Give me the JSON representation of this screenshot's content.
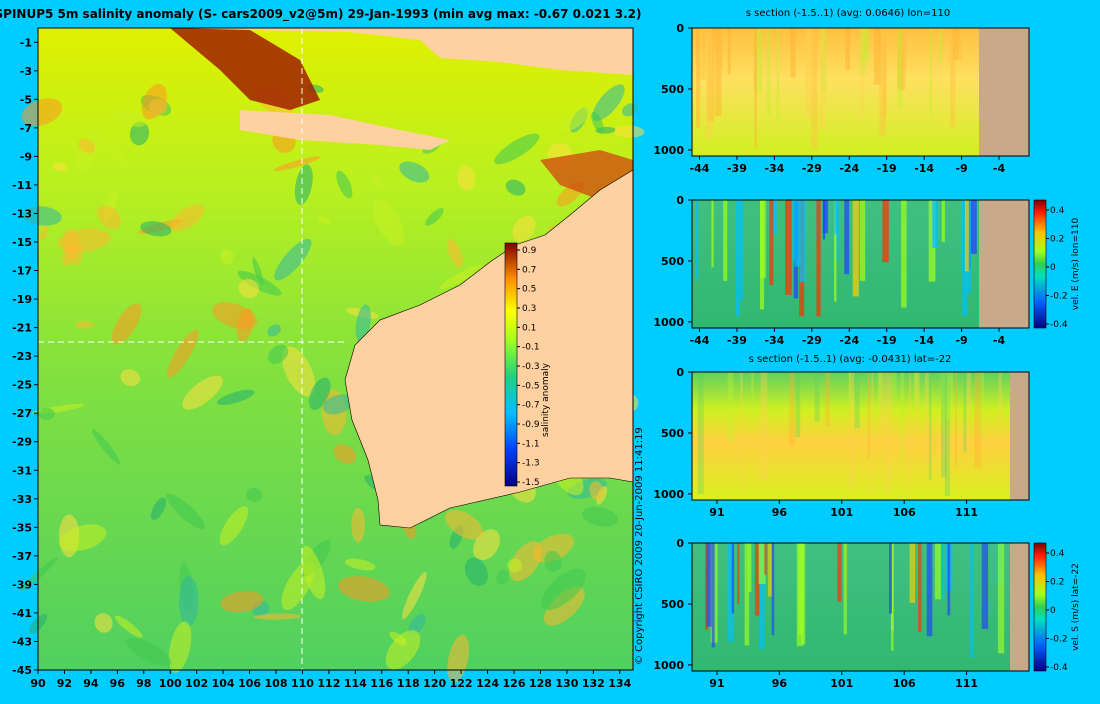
{
  "copyright": "© Copyright CSIRO 2009   20-Jun-2009 11:41:19",
  "colors": {
    "background": "#00ccff",
    "land": "#ffd0a0",
    "section_land": "#c9a98a",
    "dashed_lines": "#ffffff"
  },
  "chart_data": [
    {
      "type": "heatmap",
      "title": "SPINUP5 5m salinity anomaly (S- cars2009_v2@5m) 29-Jan-1993 (min avg max: -0.67 0.021 3.2)",
      "x_ticks": [
        90,
        92,
        94,
        96,
        98,
        100,
        102,
        104,
        106,
        108,
        110,
        112,
        114,
        116,
        118,
        120,
        122,
        124,
        126,
        128,
        130,
        132,
        134
      ],
      "y_ticks": [
        -1,
        -3,
        -5,
        -7,
        -9,
        -11,
        -13,
        -15,
        -17,
        -19,
        -21,
        -23,
        -25,
        -27,
        -29,
        -31,
        -33,
        -35,
        -37,
        -39,
        -41,
        -43,
        -45
      ],
      "xlim": [
        90,
        135
      ],
      "ylim": [
        -45,
        0
      ],
      "section_markers": {
        "lon": 110,
        "lat": -22
      },
      "colorbar": {
        "label": "salinity anomaly",
        "range": [
          -1.5,
          1.0
        ],
        "ticks": [
          "0.9",
          "0.7",
          "0.5",
          "0.3",
          "0.1",
          "-0.1",
          "-0.3",
          "-0.5",
          "-0.7",
          "-0.9",
          "-1.1",
          "-1.3",
          "-1.5"
        ]
      }
    },
    {
      "type": "heatmap",
      "title": "s section (-1.5..1) (avg: 0.0646) lon=110",
      "x_ticks": [
        "-44",
        "-39",
        "-34",
        "-29",
        "-24",
        "-19",
        "-14",
        "-9",
        "-4"
      ],
      "y_ticks": [
        "0",
        "500",
        "1000"
      ],
      "xlim": [
        -45,
        0
      ],
      "ylim": [
        1050,
        0
      ]
    },
    {
      "type": "heatmap",
      "title": "",
      "x_ticks": [
        "-44",
        "-39",
        "-34",
        "-29",
        "-24",
        "-19",
        "-14",
        "-9",
        "-4"
      ],
      "y_ticks": [
        "0",
        "500",
        "1000"
      ],
      "xlim": [
        -45,
        0
      ],
      "ylim": [
        1050,
        0
      ],
      "colorbar": {
        "label": "vel. E (m/s) lon=110",
        "ticks": [
          "0.4",
          "0.2",
          "0",
          "-0.2",
          "-0.4"
        ]
      }
    },
    {
      "type": "heatmap",
      "title": "s section (-1.5..1) (avg: -0.0431) lat=-22",
      "x_ticks": [
        "91",
        "96",
        "101",
        "106",
        "111"
      ],
      "y_ticks": [
        "0",
        "500",
        "1000"
      ],
      "xlim": [
        89,
        116
      ],
      "ylim": [
        1050,
        0
      ]
    },
    {
      "type": "heatmap",
      "title": "",
      "x_ticks": [
        "91",
        "96",
        "101",
        "106",
        "111"
      ],
      "y_ticks": [
        "0",
        "500",
        "1000"
      ],
      "xlim": [
        89,
        116
      ],
      "ylim": [
        1050,
        0
      ],
      "colorbar": {
        "label": "vel. S (m/s) lat=-22",
        "ticks": [
          "0.4",
          "0.2",
          "0",
          "-0.2",
          "-0.4"
        ]
      }
    }
  ]
}
